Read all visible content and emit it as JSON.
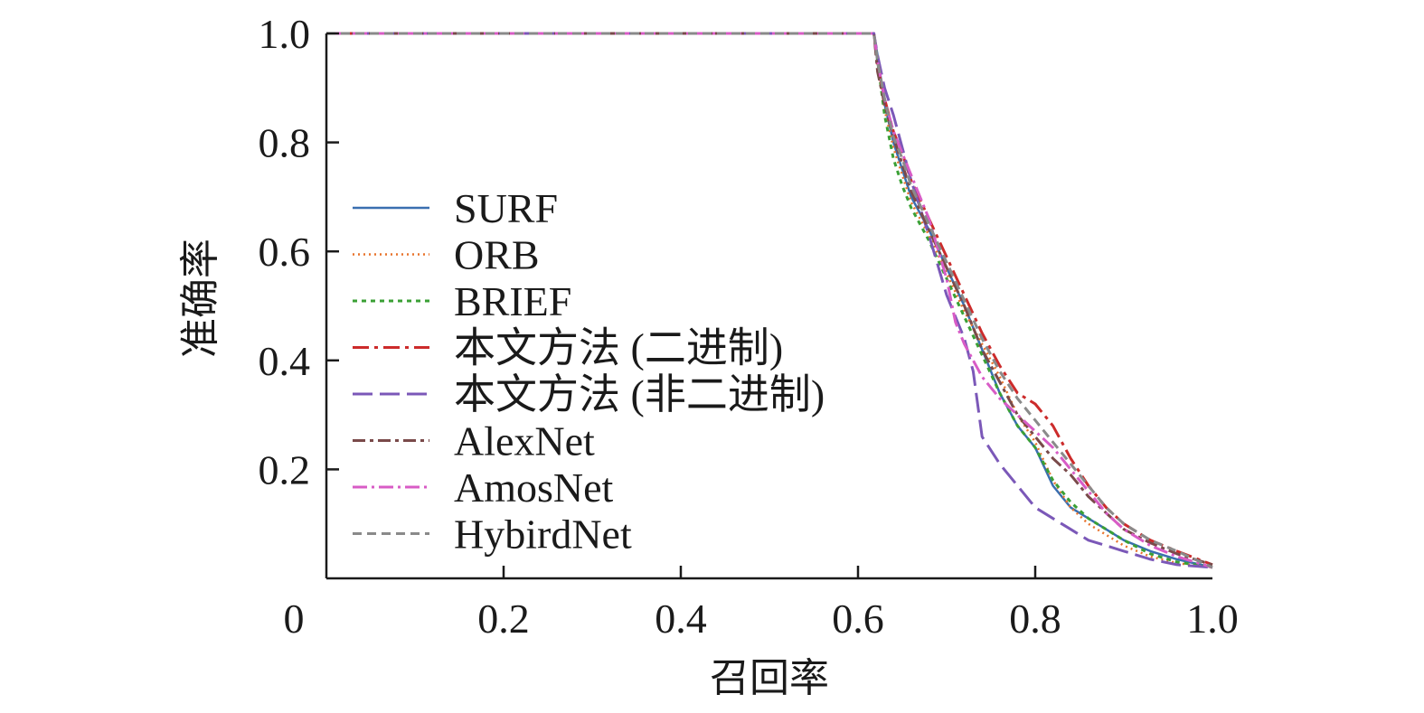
{
  "chart_data": {
    "type": "line",
    "title": "",
    "xlabel": "召回率",
    "ylabel": "准确率",
    "xlim": [
      0,
      1.0
    ],
    "ylim": [
      0,
      1.0
    ],
    "x_ticks": [
      {
        "value": 0,
        "label": "0"
      },
      {
        "value": 0.2,
        "label": "0.2"
      },
      {
        "value": 0.4,
        "label": "0.4"
      },
      {
        "value": 0.6,
        "label": "0.6"
      },
      {
        "value": 0.8,
        "label": "0.8"
      },
      {
        "value": 1.0,
        "label": "1.0"
      }
    ],
    "y_ticks": [
      {
        "value": 0.2,
        "label": "0.2"
      },
      {
        "value": 0.4,
        "label": "0.4"
      },
      {
        "value": 0.6,
        "label": "0.6"
      },
      {
        "value": 0.8,
        "label": "0.8"
      },
      {
        "value": 1.0,
        "label": "1.0"
      }
    ],
    "grid": false,
    "legend_position": "left",
    "series": [
      {
        "name": "SURF",
        "color": "#3a6fb0",
        "dash": "",
        "width": 2.5,
        "points": [
          [
            0,
            1
          ],
          [
            0.618,
            1
          ],
          [
            0.622,
            0.96
          ],
          [
            0.63,
            0.87
          ],
          [
            0.64,
            0.8
          ],
          [
            0.65,
            0.75
          ],
          [
            0.66,
            0.7
          ],
          [
            0.68,
            0.64
          ],
          [
            0.7,
            0.57
          ],
          [
            0.72,
            0.5
          ],
          [
            0.74,
            0.42
          ],
          [
            0.76,
            0.34
          ],
          [
            0.78,
            0.28
          ],
          [
            0.8,
            0.24
          ],
          [
            0.82,
            0.17
          ],
          [
            0.84,
            0.13
          ],
          [
            0.86,
            0.11
          ],
          [
            0.88,
            0.09
          ],
          [
            0.9,
            0.07
          ],
          [
            0.93,
            0.05
          ],
          [
            0.96,
            0.035
          ],
          [
            1.0,
            0.02
          ]
        ]
      },
      {
        "name": "ORB",
        "color": "#e8732c",
        "dash": "2,4",
        "width": 2.5,
        "points": [
          [
            0,
            1
          ],
          [
            0.618,
            1
          ],
          [
            0.622,
            0.95
          ],
          [
            0.63,
            0.86
          ],
          [
            0.64,
            0.79
          ],
          [
            0.65,
            0.74
          ],
          [
            0.66,
            0.69
          ],
          [
            0.68,
            0.63
          ],
          [
            0.7,
            0.56
          ],
          [
            0.72,
            0.49
          ],
          [
            0.74,
            0.43
          ],
          [
            0.76,
            0.37
          ],
          [
            0.78,
            0.3
          ],
          [
            0.8,
            0.25
          ],
          [
            0.82,
            0.18
          ],
          [
            0.84,
            0.13
          ],
          [
            0.86,
            0.1
          ],
          [
            0.88,
            0.08
          ],
          [
            0.9,
            0.06
          ],
          [
            0.93,
            0.04
          ],
          [
            0.96,
            0.028
          ],
          [
            1.0,
            0.02
          ]
        ]
      },
      {
        "name": "BRIEF",
        "color": "#3aa035",
        "dash": "5,5",
        "width": 3,
        "points": [
          [
            0,
            1
          ],
          [
            0.618,
            1
          ],
          [
            0.622,
            0.95
          ],
          [
            0.63,
            0.85
          ],
          [
            0.64,
            0.77
          ],
          [
            0.65,
            0.72
          ],
          [
            0.66,
            0.68
          ],
          [
            0.68,
            0.62
          ],
          [
            0.7,
            0.55
          ],
          [
            0.72,
            0.48
          ],
          [
            0.74,
            0.41
          ],
          [
            0.76,
            0.34
          ],
          [
            0.78,
            0.28
          ],
          [
            0.8,
            0.24
          ],
          [
            0.82,
            0.18
          ],
          [
            0.84,
            0.14
          ],
          [
            0.86,
            0.11
          ],
          [
            0.88,
            0.09
          ],
          [
            0.9,
            0.07
          ],
          [
            0.93,
            0.045
          ],
          [
            0.96,
            0.03
          ],
          [
            1.0,
            0.02
          ]
        ]
      },
      {
        "name": "本文方法 (二进制)",
        "color": "#cc2b2b",
        "dash": "18,6,4,6",
        "width": 3,
        "points": [
          [
            0,
            1
          ],
          [
            0.618,
            1
          ],
          [
            0.622,
            0.94
          ],
          [
            0.63,
            0.88
          ],
          [
            0.64,
            0.82
          ],
          [
            0.65,
            0.78
          ],
          [
            0.66,
            0.73
          ],
          [
            0.68,
            0.66
          ],
          [
            0.7,
            0.59
          ],
          [
            0.72,
            0.52
          ],
          [
            0.74,
            0.45
          ],
          [
            0.76,
            0.39
          ],
          [
            0.78,
            0.34
          ],
          [
            0.8,
            0.32
          ],
          [
            0.82,
            0.28
          ],
          [
            0.84,
            0.22
          ],
          [
            0.86,
            0.17
          ],
          [
            0.88,
            0.13
          ],
          [
            0.9,
            0.1
          ],
          [
            0.93,
            0.07
          ],
          [
            0.96,
            0.05
          ],
          [
            1.0,
            0.025
          ]
        ]
      },
      {
        "name": "本文方法 (非二进制)",
        "color": "#7b58b8",
        "dash": "22,8",
        "width": 3,
        "points": [
          [
            0,
            1
          ],
          [
            0.618,
            1
          ],
          [
            0.622,
            0.96
          ],
          [
            0.63,
            0.9
          ],
          [
            0.64,
            0.85
          ],
          [
            0.65,
            0.79
          ],
          [
            0.66,
            0.73
          ],
          [
            0.68,
            0.63
          ],
          [
            0.7,
            0.52
          ],
          [
            0.72,
            0.44
          ],
          [
            0.73,
            0.38
          ],
          [
            0.74,
            0.26
          ],
          [
            0.76,
            0.21
          ],
          [
            0.78,
            0.17
          ],
          [
            0.8,
            0.13
          ],
          [
            0.82,
            0.11
          ],
          [
            0.84,
            0.09
          ],
          [
            0.86,
            0.07
          ],
          [
            0.88,
            0.06
          ],
          [
            0.9,
            0.05
          ],
          [
            0.93,
            0.035
          ],
          [
            0.96,
            0.025
          ],
          [
            1.0,
            0.02
          ]
        ]
      },
      {
        "name": "AlexNet",
        "color": "#7a4a4a",
        "dash": "14,5,4,5",
        "width": 3,
        "points": [
          [
            0,
            1
          ],
          [
            0.618,
            1
          ],
          [
            0.622,
            0.93
          ],
          [
            0.63,
            0.87
          ],
          [
            0.64,
            0.81
          ],
          [
            0.65,
            0.76
          ],
          [
            0.66,
            0.71
          ],
          [
            0.68,
            0.64
          ],
          [
            0.7,
            0.57
          ],
          [
            0.72,
            0.5
          ],
          [
            0.74,
            0.42
          ],
          [
            0.76,
            0.36
          ],
          [
            0.78,
            0.3
          ],
          [
            0.8,
            0.26
          ],
          [
            0.82,
            0.22
          ],
          [
            0.84,
            0.19
          ],
          [
            0.86,
            0.15
          ],
          [
            0.88,
            0.12
          ],
          [
            0.9,
            0.09
          ],
          [
            0.93,
            0.065
          ],
          [
            0.96,
            0.045
          ],
          [
            1.0,
            0.025
          ]
        ]
      },
      {
        "name": "AmosNet",
        "color": "#d85cc6",
        "dash": "16,5,3,5",
        "width": 3,
        "points": [
          [
            0,
            1
          ],
          [
            0.618,
            1
          ],
          [
            0.622,
            0.95
          ],
          [
            0.63,
            0.88
          ],
          [
            0.64,
            0.82
          ],
          [
            0.65,
            0.78
          ],
          [
            0.66,
            0.74
          ],
          [
            0.68,
            0.66
          ],
          [
            0.7,
            0.55
          ],
          [
            0.71,
            0.47
          ],
          [
            0.72,
            0.43
          ],
          [
            0.74,
            0.37
          ],
          [
            0.76,
            0.33
          ],
          [
            0.78,
            0.3
          ],
          [
            0.8,
            0.27
          ],
          [
            0.82,
            0.24
          ],
          [
            0.84,
            0.2
          ],
          [
            0.86,
            0.16
          ],
          [
            0.88,
            0.12
          ],
          [
            0.9,
            0.09
          ],
          [
            0.93,
            0.06
          ],
          [
            0.96,
            0.04
          ],
          [
            1.0,
            0.02
          ]
        ]
      },
      {
        "name": "HybirdNet",
        "color": "#8a8a8a",
        "dash": "10,6",
        "width": 3,
        "points": [
          [
            0,
            1
          ],
          [
            0.618,
            1
          ],
          [
            0.622,
            0.95
          ],
          [
            0.63,
            0.88
          ],
          [
            0.64,
            0.81
          ],
          [
            0.65,
            0.77
          ],
          [
            0.66,
            0.72
          ],
          [
            0.68,
            0.65
          ],
          [
            0.7,
            0.58
          ],
          [
            0.72,
            0.51
          ],
          [
            0.74,
            0.44
          ],
          [
            0.76,
            0.38
          ],
          [
            0.78,
            0.33
          ],
          [
            0.8,
            0.29
          ],
          [
            0.82,
            0.25
          ],
          [
            0.84,
            0.21
          ],
          [
            0.86,
            0.17
          ],
          [
            0.88,
            0.13
          ],
          [
            0.9,
            0.1
          ],
          [
            0.93,
            0.07
          ],
          [
            0.96,
            0.05
          ],
          [
            1.0,
            0.02
          ]
        ]
      }
    ]
  }
}
